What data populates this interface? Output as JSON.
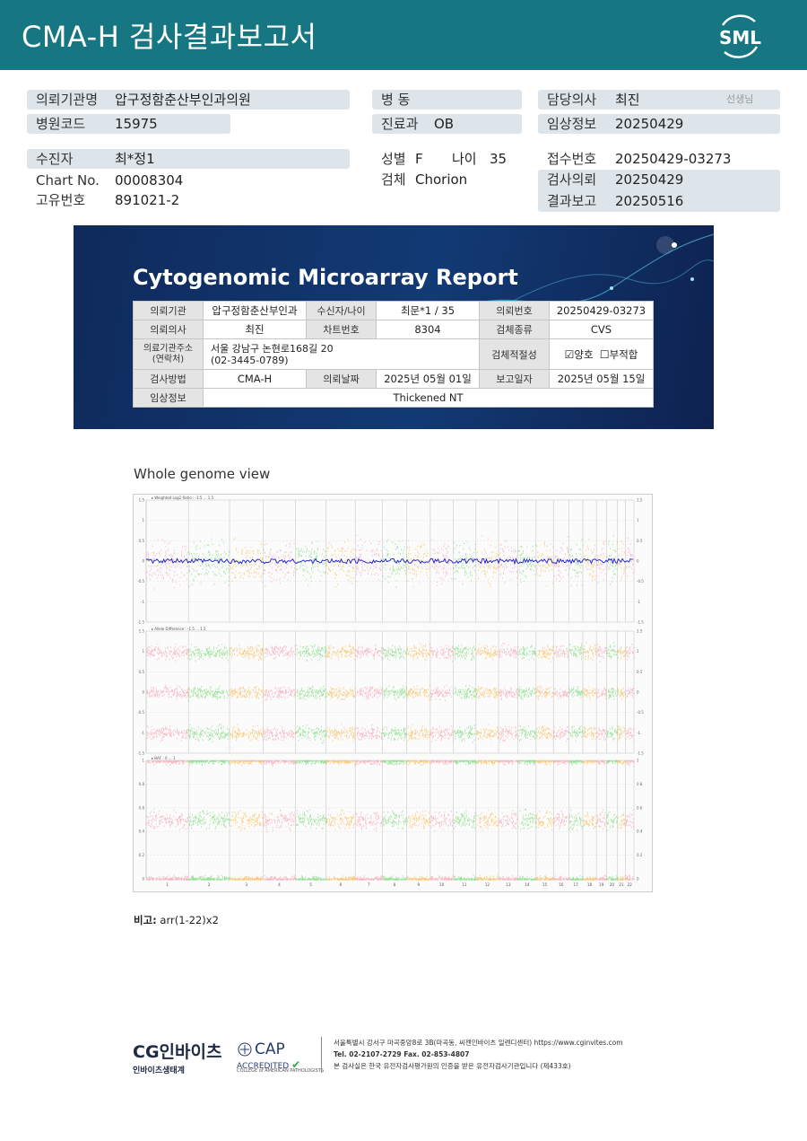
{
  "header": {
    "title": "CMA-H 검사결과보고서",
    "logo_text": "SML",
    "accent_color": "#167682"
  },
  "patient_info": {
    "institution_label": "의뢰기관명",
    "institution_value": "압구정함춘산부인과의원",
    "hospital_code_label": "병원코드",
    "hospital_code_value": "15975",
    "ward_label": "병 동",
    "dept_label": "진료과",
    "dept_value": "OB",
    "doctor_label": "담당의사",
    "doctor_value": "최진",
    "doctor_suffix": "선생님",
    "clinical_label": "임상정보",
    "clinical_value": "20250429",
    "examinee_label": "수진자",
    "examinee_value": "최*정1",
    "chart_label": "Chart No.",
    "chart_value": "00008304",
    "unique_label": "고유번호",
    "unique_value": "891021-2",
    "sex_label": "성별",
    "sex_value": "F",
    "age_label": "나이",
    "age_value": "35",
    "specimen_label": "검체",
    "specimen_value": "Chorion",
    "receipt_label": "접수번호",
    "receipt_value": "20250429-03273",
    "request_label": "검사의뢰",
    "request_value": "20250429",
    "result_label": "결과보고",
    "result_value": "20250516"
  },
  "report": {
    "banner_title": "Cytogenomic Microarray Report",
    "table": {
      "r1": [
        "의뢰기관",
        "압구정함춘산부인과",
        "수신자/나이",
        "최문*1 / 35",
        "의뢰번호",
        "20250429-03273"
      ],
      "r2": [
        "의뢰의사",
        "최진",
        "차트번호",
        "8304",
        "검체종류",
        "CVS"
      ],
      "r3_label": "의료기관주소\n(연락처)",
      "r3_address": "서울 강남구 논현로168길 20",
      "r3_phone": "(02-3445-0789)",
      "r3_label2": "검체적절성",
      "r3_ok": "양호",
      "r3_bad": "부적합",
      "r4": [
        "검사방법",
        "CMA-H",
        "의뢰날짜",
        "2025년 05월 01일",
        "보고일자",
        "2025년 05월 15일"
      ],
      "r5": [
        "임상정보",
        "Thickened NT"
      ]
    },
    "whole_genome_label": "Whole genome view",
    "note_label": "비고:",
    "note_value": "arr(1-22)x2"
  },
  "chart_data": {
    "type": "scatter",
    "title": "Whole genome view",
    "panels": [
      {
        "name": "Weighted Log2 Ratio : -1.5 ... 1.5",
        "ylim": [
          -1.5,
          1.5
        ],
        "ticks": [
          "1.5",
          "1",
          "0.5",
          "0",
          "-0.5",
          "-1",
          "-1.5"
        ]
      },
      {
        "name": "Allele Difference : -1.5 ... 1.5",
        "ylim": [
          -1.5,
          1.5
        ],
        "ticks": [
          "1.5",
          "1",
          "0.5",
          "0",
          "-0.5",
          "-1",
          "-1.5"
        ]
      },
      {
        "name": "BAF : 0 ... 1",
        "ylim": [
          0,
          1
        ],
        "ticks": [
          "1",
          "0.8",
          "0.6",
          "0.4",
          "0.2",
          "0"
        ]
      }
    ],
    "chromosomes": [
      "1",
      "2",
      "3",
      "4",
      "5",
      "6",
      "7",
      "8",
      "9",
      "10",
      "11",
      "12",
      "13",
      "14",
      "15",
      "16",
      "17",
      "18",
      "19",
      "20",
      "21",
      "22"
    ],
    "chromosome_sizes": [
      249,
      242,
      198,
      190,
      181,
      171,
      159,
      145,
      138,
      134,
      135,
      133,
      114,
      107,
      102,
      90,
      83,
      80,
      59,
      64,
      47,
      51
    ],
    "copy_number_state": 2,
    "colors": {
      "band1": "#f6b3be",
      "band2": "#8ee08e",
      "band3": "#f9c773",
      "smooth": "#1a1ad0"
    }
  },
  "footer": {
    "company": "CG인바이츠",
    "company_sub": "인바이츠생태계",
    "cap_title": "CAP",
    "cap_accredited": "ACCREDITED",
    "cap_college": "COLLEGE of AMERICAN PATHOLOGISTS",
    "address_line": "서울특별시 강서구 마곡중앙8로 3B(마곡동, 씨젠인바이츠 일렌디센터)  https://www.cginvites.com",
    "tel_line": "Tel. 02-2107-2729   Fax. 02-853-4807",
    "cert_line": "본 검사실은 한국 유전자검사평가원의 인증을 받은 유전자검사기관입니다 (제433호)"
  }
}
